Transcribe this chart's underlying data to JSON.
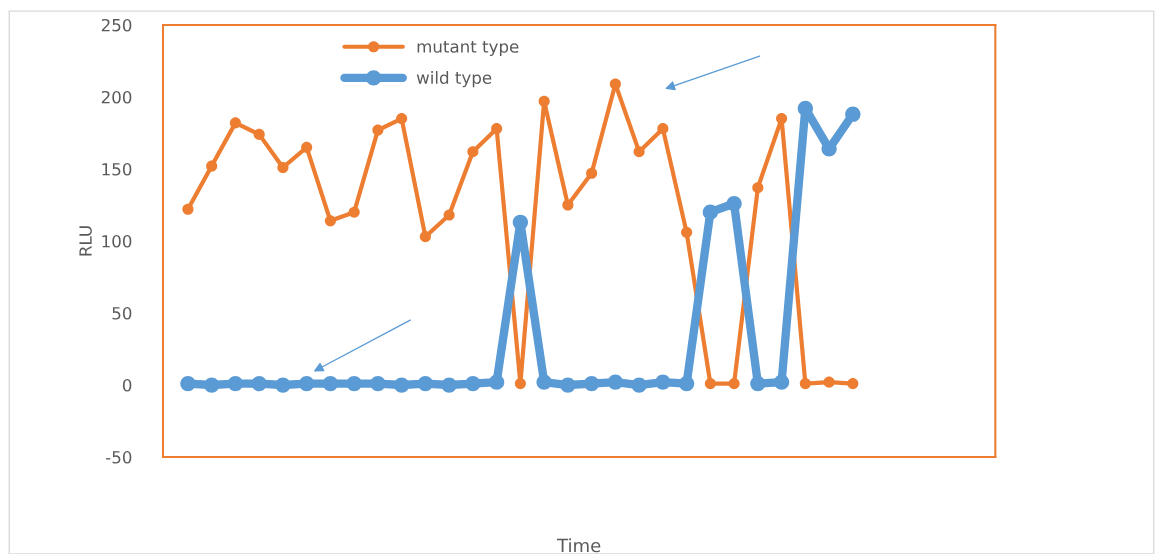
{
  "chart_data": {
    "type": "line",
    "xlabel": "Time",
    "ylabel": "RLU",
    "categories": [
      null,
      null,
      null,
      null,
      null,
      null,
      null,
      null,
      null,
      null,
      null,
      null,
      null,
      null,
      null,
      null,
      null,
      null,
      null,
      null,
      null,
      null,
      null,
      null,
      null,
      null,
      null,
      null,
      null
    ],
    "series": [
      {
        "name": "mutant type",
        "color": "#ed7d31",
        "values": [
          122,
          152,
          182,
          174,
          151,
          165,
          114,
          120,
          177,
          185,
          103,
          118,
          162,
          178,
          1,
          197,
          125,
          147,
          209,
          162,
          178,
          106,
          1,
          1,
          137,
          185,
          1,
          2,
          1
        ]
      },
      {
        "name": "wild type",
        "color": "#5b9bd5",
        "values": [
          1,
          0,
          1,
          1,
          0,
          1,
          1,
          1,
          1,
          0,
          1,
          0,
          1,
          2,
          113,
          2,
          0,
          1,
          2,
          0,
          2,
          1,
          120,
          126,
          1,
          2,
          192,
          164,
          188
        ]
      }
    ],
    "ylim": [
      -50,
      250
    ],
    "yticks": [
      -50,
      0,
      50,
      100,
      150,
      200,
      250
    ],
    "grid": false,
    "legend": "top",
    "marker": "circle",
    "line_style": "solid"
  }
}
